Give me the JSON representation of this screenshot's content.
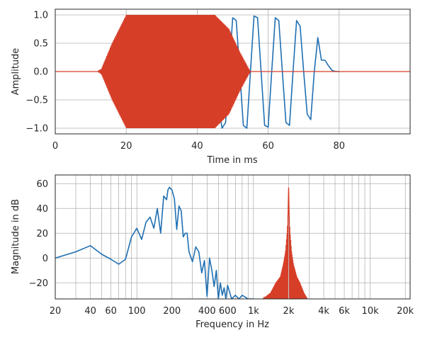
{
  "chart_data": [
    {
      "type": "line",
      "xlabel": "Time in ms",
      "ylabel": "Amplitude",
      "xlim": [
        0,
        100
      ],
      "ylim": [
        -1.1,
        1.1
      ],
      "xticks": [
        0,
        20,
        40,
        60,
        80
      ],
      "xtick_labels": [
        "0",
        "20",
        "40",
        "60",
        "80"
      ],
      "yticks": [
        -1.0,
        -0.5,
        0.0,
        0.5,
        1.0
      ],
      "ytick_labels": [
        "−1.0",
        "−0.5",
        "0.0",
        "0.5",
        "1.0"
      ],
      "grid": true,
      "series": [
        {
          "color": "#1f6fb3",
          "description": "tone burst of low-frequency sine, Gaussian envelope centered near 40 ms; visible only outside the red burst",
          "x": [
            45,
            46,
            47,
            48,
            49,
            50,
            51,
            52,
            53,
            54,
            55,
            56,
            57,
            58,
            59,
            60,
            61,
            62,
            63,
            64,
            65,
            66,
            67,
            68,
            69,
            70,
            71,
            72,
            73,
            74,
            75,
            76,
            77,
            78,
            79,
            80
          ],
          "y": [
            0.0,
            -0.6,
            -1.0,
            -0.9,
            0.0,
            0.95,
            0.9,
            0.0,
            -0.95,
            -1.0,
            0.0,
            0.98,
            0.95,
            0.0,
            -0.95,
            -0.98,
            0.0,
            0.95,
            0.9,
            0.0,
            -0.9,
            -0.95,
            0.0,
            0.9,
            0.8,
            0.0,
            -0.75,
            -0.85,
            0.0,
            0.6,
            0.2,
            0.2,
            0.1,
            0.02,
            0.0,
            0.0
          ]
        },
        {
          "color": "#d63e28",
          "description": "high-frequency (2 kHz) tone burst with trapezoidal envelope",
          "envelope_x": [
            0,
            12,
            13,
            16,
            20,
            45,
            49,
            52,
            55,
            100
          ],
          "envelope_y": [
            0.0,
            0.0,
            0.05,
            0.5,
            1.0,
            1.0,
            0.75,
            0.35,
            0.0,
            0.0
          ],
          "carrier_hz": 2000
        }
      ]
    },
    {
      "type": "line",
      "xlabel": "Frequency in Hz",
      "ylabel": "Magnitude in dB",
      "xscale": "log",
      "xlim": [
        20,
        22000
      ],
      "ylim": [
        -33,
        67
      ],
      "xticks": [
        20,
        40,
        60,
        100,
        200,
        400,
        600,
        1000,
        2000,
        4000,
        6000,
        10000,
        20000
      ],
      "xtick_labels": [
        "20",
        "40",
        "60",
        "100",
        "200",
        "400",
        "600",
        "1k",
        "2k",
        "4k",
        "6k",
        "10k",
        "20k"
      ],
      "yticks": [
        -20,
        0,
        20,
        40,
        60
      ],
      "ytick_labels": [
        "−20",
        "0",
        "20",
        "40",
        "60"
      ],
      "grid": true,
      "series": [
        {
          "color": "#1f6fb3",
          "x": [
            20,
            30,
            40,
            50,
            60,
            70,
            80,
            90,
            100,
            110,
            120,
            130,
            140,
            150,
            160,
            170,
            180,
            185,
            190,
            200,
            210,
            220,
            230,
            240,
            250,
            260,
            270,
            280,
            300,
            320,
            340,
            360,
            380,
            400,
            420,
            440,
            460,
            480,
            500,
            520,
            540,
            560,
            580,
            600,
            650,
            700,
            750,
            800,
            900,
            1000
          ],
          "y": [
            0,
            5,
            10,
            3,
            -1,
            -5,
            -1,
            17,
            24,
            15,
            29,
            33,
            24,
            40,
            20,
            50,
            47,
            55,
            57,
            55,
            48,
            23,
            42,
            38,
            17,
            20,
            20,
            5,
            -3,
            9,
            5,
            -12,
            -2,
            -31,
            0,
            -10,
            -23,
            -10,
            -33,
            -20,
            -30,
            -24,
            -33,
            -22,
            -33,
            -30,
            -33,
            -30,
            -33,
            -33
          ]
        },
        {
          "color": "#d63e28",
          "description": "sharp peak at 2 kHz with densely oscillating sidelobes",
          "x": [
            1200,
            1400,
            1550,
            1700,
            1800,
            1880,
            1940,
            1980,
            2000,
            2020,
            2060,
            2120,
            2200,
            2350,
            2500,
            2700,
            2900
          ],
          "y": [
            -33,
            -28,
            -20,
            -15,
            -5,
            5,
            20,
            35,
            58,
            35,
            20,
            5,
            -5,
            -15,
            -20,
            -28,
            -33
          ]
        }
      ]
    }
  ]
}
